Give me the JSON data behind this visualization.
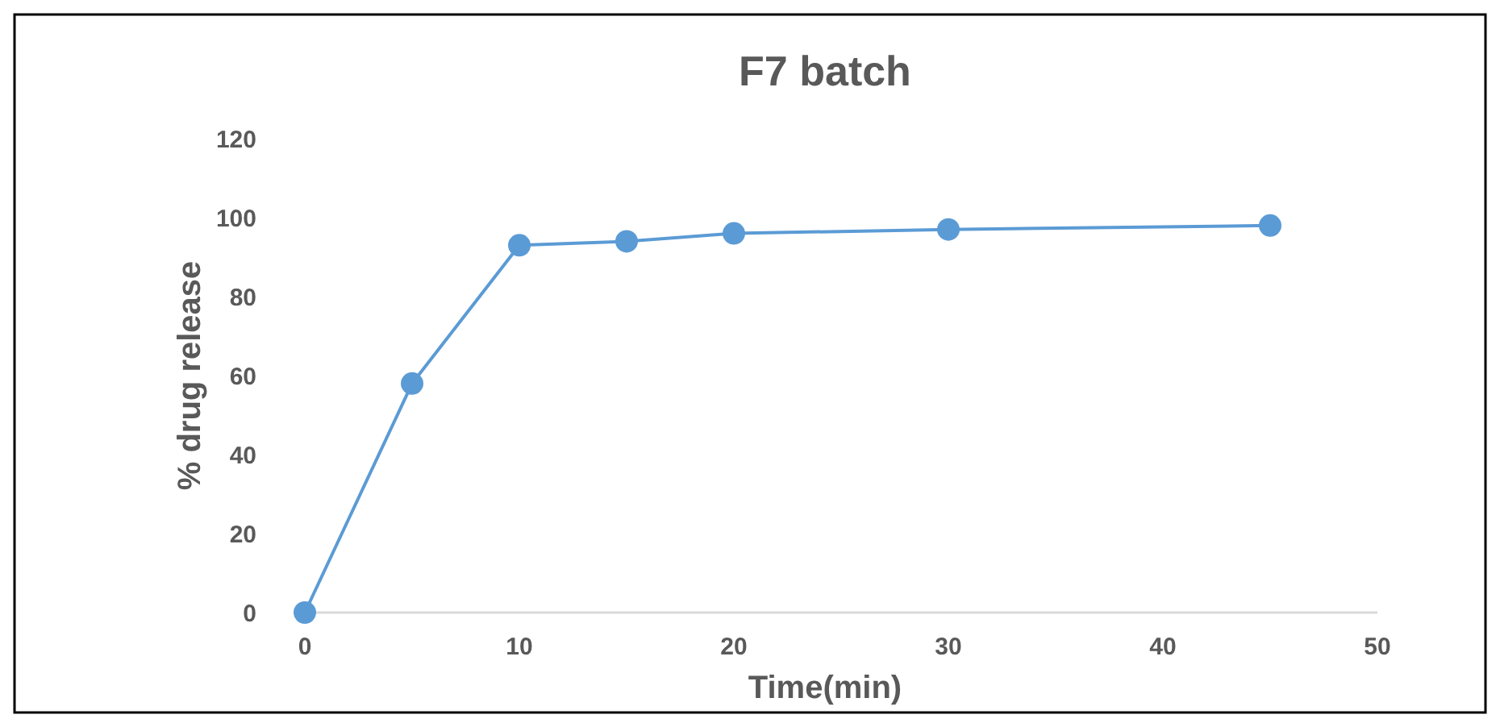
{
  "chart_data": {
    "type": "line",
    "title": "F7 batch",
    "xlabel": "Time(min)",
    "ylabel": "% drug release",
    "x": [
      0,
      5,
      10,
      15,
      20,
      30,
      45
    ],
    "series": [
      {
        "color": "#5b9bd5",
        "values": [
          0,
          58,
          93,
          94,
          96,
          97,
          98
        ]
      }
    ],
    "xlim": [
      0,
      50
    ],
    "xticks": [
      0,
      10,
      20,
      30,
      40,
      50
    ],
    "ylim": [
      0,
      120
    ],
    "yticks": [
      0,
      20,
      40,
      60,
      80,
      100,
      120
    ],
    "grid": false,
    "marker": "circle",
    "line_style": "solid"
  }
}
